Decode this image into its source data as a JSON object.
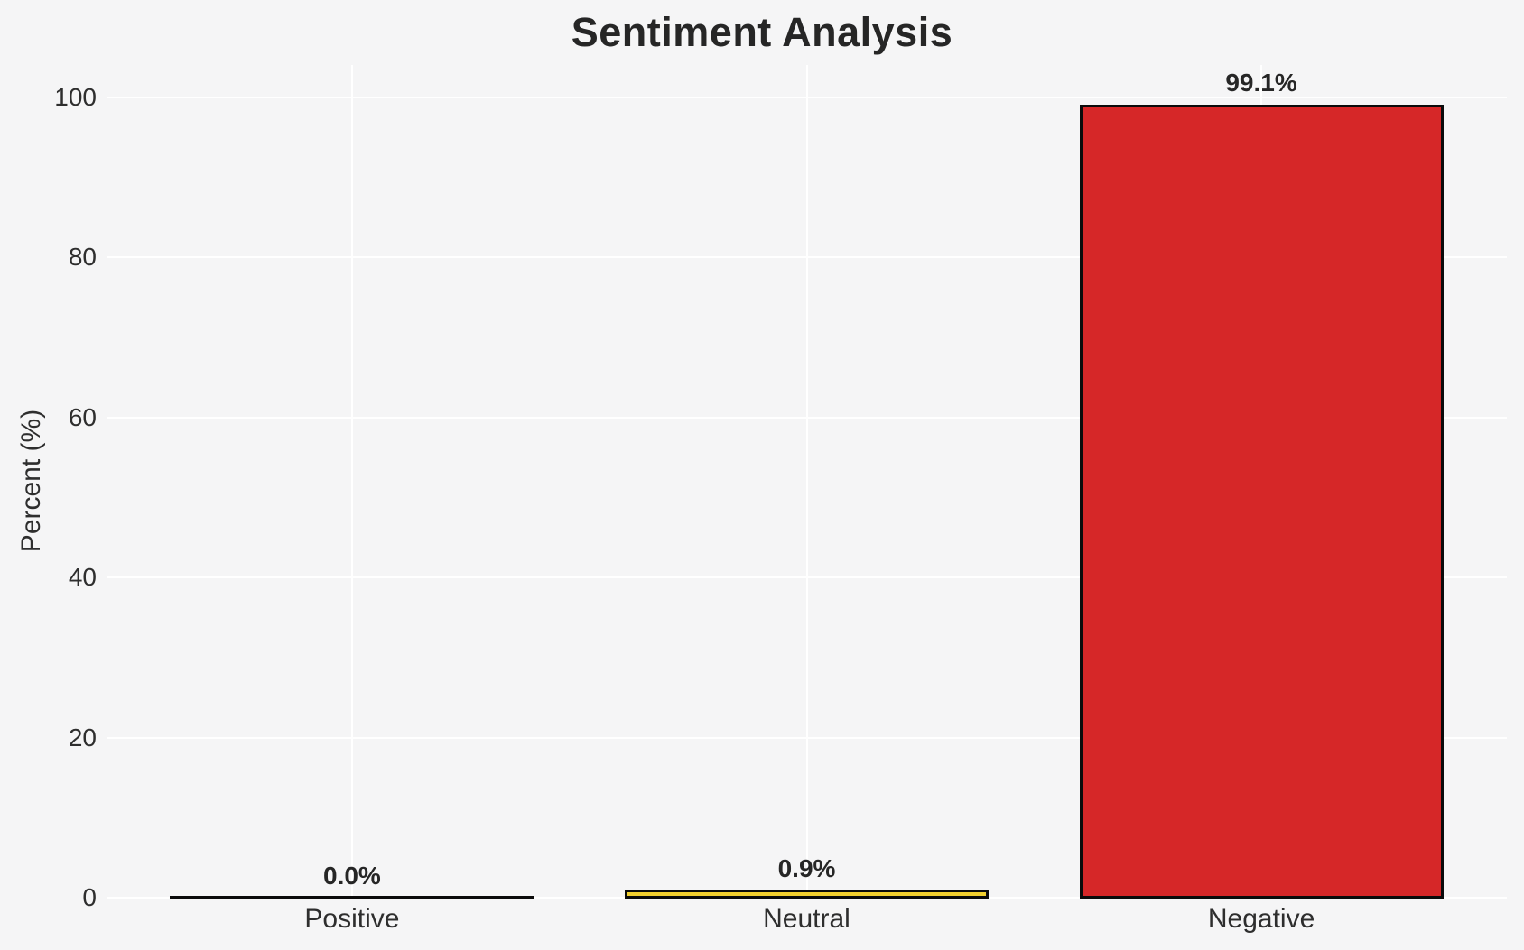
{
  "chart_data": {
    "type": "bar",
    "title": "Sentiment Analysis",
    "xlabel": "",
    "ylabel": "Percent (%)",
    "categories": [
      "Positive",
      "Neutral",
      "Negative"
    ],
    "values": [
      0.0,
      0.9,
      99.1
    ],
    "value_labels": [
      "0.0%",
      "0.9%",
      "99.1%"
    ],
    "yticks": [
      "0",
      "20",
      "40",
      "60",
      "80",
      "100"
    ],
    "ytick_values": [
      0,
      20,
      40,
      60,
      80,
      100
    ],
    "ylim": [
      0,
      104
    ],
    "grid": true,
    "legend_position": "none",
    "bar_colors": [
      null,
      "#f2d02f",
      "#d62728"
    ],
    "bar_edge_color": "#0b0b0b"
  },
  "colors": {
    "background": "#f5f5f6",
    "gridline": "#ffffff",
    "title_text": "#262626",
    "tick_text": "#2e2e2e",
    "value_label_text": "#262626",
    "negative_bar": "#d62728",
    "neutral_bar": "#f2d02f",
    "bar_edge": "#0b0b0b"
  }
}
